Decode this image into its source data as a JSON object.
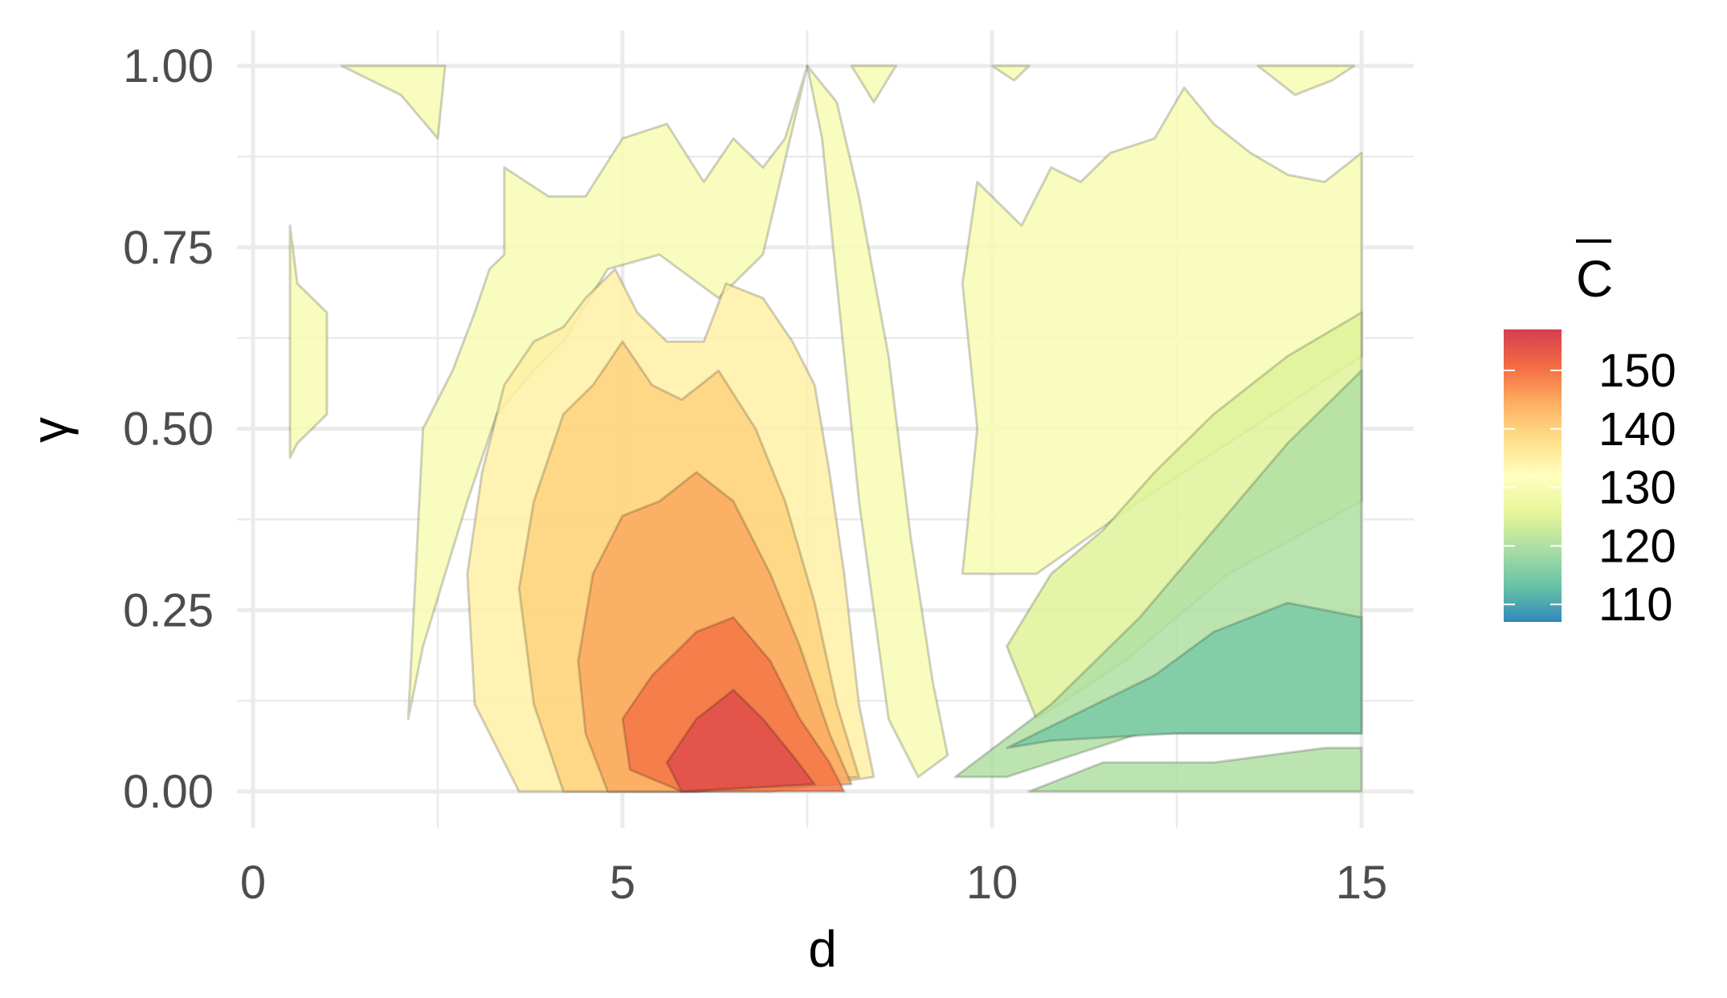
{
  "chart_data": {
    "type": "contour",
    "title": "",
    "xlabel": "d",
    "ylabel": "γ",
    "xlim": [
      0,
      15
    ],
    "ylim": [
      0,
      1
    ],
    "x_ticks": [
      0,
      5,
      10,
      15
    ],
    "y_ticks": [
      0.0,
      0.25,
      0.5,
      0.75,
      1.0
    ],
    "x_tick_labels": [
      "0",
      "5",
      "10",
      "15"
    ],
    "y_tick_labels": [
      "0.00",
      "0.25",
      "0.50",
      "0.75",
      "1.00"
    ],
    "grid": true,
    "legend": {
      "title": "C",
      "title_overline": true,
      "position": "right",
      "breaks": [
        110,
        120,
        130,
        140,
        150
      ],
      "break_labels": [
        "110",
        "120",
        "130",
        "140",
        "150"
      ],
      "range": [
        107,
        157
      ],
      "colors": [
        "#3288bd",
        "#66c2a5",
        "#abdda4",
        "#e6f598",
        "#ffffbf",
        "#fee08b",
        "#fdae61",
        "#f46d43",
        "#d53e4f"
      ]
    },
    "levels": [
      {
        "level": 130,
        "regions": [
          {
            "points": [
              [
                0.5,
                0.46
              ],
              [
                0.5,
                0.78
              ],
              [
                0.6,
                0.7
              ],
              [
                1.0,
                0.66
              ],
              [
                1.0,
                0.6
              ],
              [
                1.0,
                0.52
              ],
              [
                0.6,
                0.48
              ]
            ]
          },
          {
            "points": [
              [
                2.3,
                0.5
              ],
              [
                2.7,
                0.58
              ],
              [
                3.0,
                0.66
              ],
              [
                3.2,
                0.72
              ],
              [
                3.4,
                0.74
              ],
              [
                3.4,
                0.86
              ],
              [
                4.0,
                0.82
              ],
              [
                4.5,
                0.82
              ],
              [
                5.0,
                0.9
              ],
              [
                5.6,
                0.92
              ],
              [
                6.1,
                0.84
              ],
              [
                6.5,
                0.9
              ],
              [
                6.9,
                0.86
              ],
              [
                7.2,
                0.9
              ],
              [
                7.5,
                1.0
              ],
              [
                6.9,
                0.74
              ],
              [
                6.3,
                0.68
              ],
              [
                5.5,
                0.74
              ],
              [
                4.8,
                0.72
              ],
              [
                4.2,
                0.62
              ],
              [
                3.8,
                0.58
              ],
              [
                3.3,
                0.52
              ],
              [
                2.9,
                0.4
              ],
              [
                2.6,
                0.3
              ],
              [
                2.3,
                0.2
              ],
              [
                2.1,
                0.1
              ]
            ]
          },
          {
            "points": [
              [
                1.2,
                1.0
              ],
              [
                2.0,
                0.96
              ],
              [
                2.5,
                0.9
              ],
              [
                2.6,
                1.0
              ]
            ]
          },
          {
            "points": [
              [
                7.5,
                1.0
              ],
              [
                7.9,
                0.95
              ],
              [
                8.2,
                0.82
              ],
              [
                8.6,
                0.6
              ],
              [
                8.9,
                0.35
              ],
              [
                9.2,
                0.15
              ],
              [
                9.4,
                0.05
              ],
              [
                9.0,
                0.02
              ],
              [
                8.6,
                0.1
              ],
              [
                8.2,
                0.4
              ],
              [
                7.9,
                0.7
              ],
              [
                7.7,
                0.9
              ]
            ]
          },
          {
            "points": [
              [
                9.6,
                0.3
              ],
              [
                9.8,
                0.5
              ],
              [
                9.6,
                0.7
              ],
              [
                9.8,
                0.84
              ],
              [
                10.4,
                0.78
              ],
              [
                10.8,
                0.86
              ],
              [
                11.2,
                0.84
              ],
              [
                11.6,
                0.88
              ],
              [
                12.2,
                0.9
              ],
              [
                12.6,
                0.97
              ],
              [
                13.0,
                0.92
              ],
              [
                13.5,
                0.88
              ],
              [
                14.0,
                0.85
              ],
              [
                14.5,
                0.84
              ],
              [
                15.0,
                0.88
              ],
              [
                15.0,
                0.6
              ],
              [
                13.5,
                0.5
              ],
              [
                12.0,
                0.4
              ],
              [
                10.6,
                0.3
              ]
            ]
          },
          {
            "points": [
              [
                8.1,
                1.0
              ],
              [
                8.4,
                0.95
              ],
              [
                8.7,
                1.0
              ]
            ]
          },
          {
            "points": [
              [
                10.0,
                1.0
              ],
              [
                10.3,
                0.98
              ],
              [
                10.5,
                1.0
              ]
            ]
          },
          {
            "points": [
              [
                13.6,
                1.0
              ],
              [
                14.1,
                0.96
              ],
              [
                14.6,
                0.98
              ],
              [
                14.9,
                1.0
              ]
            ]
          }
        ]
      },
      {
        "level": 135,
        "regions": [
          {
            "points": [
              [
                2.9,
                0.3
              ],
              [
                3.1,
                0.44
              ],
              [
                3.4,
                0.56
              ],
              [
                3.8,
                0.62
              ],
              [
                4.2,
                0.64
              ],
              [
                4.5,
                0.68
              ],
              [
                4.9,
                0.72
              ],
              [
                5.2,
                0.66
              ],
              [
                5.6,
                0.62
              ],
              [
                6.1,
                0.62
              ],
              [
                6.4,
                0.7
              ],
              [
                6.9,
                0.68
              ],
              [
                7.3,
                0.62
              ],
              [
                7.6,
                0.56
              ],
              [
                7.8,
                0.44
              ],
              [
                8.0,
                0.3
              ],
              [
                8.2,
                0.12
              ],
              [
                8.4,
                0.02
              ],
              [
                7.0,
                0.0
              ],
              [
                5.0,
                0.0
              ],
              [
                3.6,
                0.0
              ],
              [
                3.0,
                0.12
              ]
            ]
          }
        ]
      },
      {
        "level": 140,
        "regions": [
          {
            "points": [
              [
                3.6,
                0.28
              ],
              [
                3.8,
                0.4
              ],
              [
                4.2,
                0.52
              ],
              [
                4.6,
                0.56
              ],
              [
                5.0,
                0.62
              ],
              [
                5.4,
                0.56
              ],
              [
                5.8,
                0.54
              ],
              [
                6.3,
                0.58
              ],
              [
                6.8,
                0.5
              ],
              [
                7.2,
                0.4
              ],
              [
                7.6,
                0.26
              ],
              [
                7.9,
                0.12
              ],
              [
                8.2,
                0.02
              ],
              [
                6.0,
                0.0
              ],
              [
                4.2,
                0.0
              ],
              [
                3.8,
                0.12
              ]
            ]
          }
        ]
      },
      {
        "level": 145,
        "regions": [
          {
            "points": [
              [
                4.4,
                0.18
              ],
              [
                4.6,
                0.3
              ],
              [
                5.0,
                0.38
              ],
              [
                5.5,
                0.4
              ],
              [
                6.0,
                0.44
              ],
              [
                6.5,
                0.4
              ],
              [
                7.0,
                0.3
              ],
              [
                7.4,
                0.2
              ],
              [
                7.8,
                0.08
              ],
              [
                8.1,
                0.01
              ],
              [
                6.0,
                0.0
              ],
              [
                4.8,
                0.0
              ],
              [
                4.5,
                0.08
              ]
            ]
          }
        ]
      },
      {
        "level": 150,
        "regions": [
          {
            "points": [
              [
                5.0,
                0.1
              ],
              [
                5.4,
                0.16
              ],
              [
                6.0,
                0.22
              ],
              [
                6.5,
                0.24
              ],
              [
                7.0,
                0.18
              ],
              [
                7.4,
                0.1
              ],
              [
                7.8,
                0.04
              ],
              [
                8.0,
                0.0
              ],
              [
                5.8,
                0.0
              ],
              [
                5.1,
                0.03
              ]
            ]
          }
        ]
      },
      {
        "level": 155,
        "regions": [
          {
            "points": [
              [
                5.6,
                0.04
              ],
              [
                6.0,
                0.1
              ],
              [
                6.5,
                0.14
              ],
              [
                6.9,
                0.1
              ],
              [
                7.3,
                0.05
              ],
              [
                7.6,
                0.01
              ],
              [
                5.8,
                0.0
              ]
            ]
          }
        ]
      },
      {
        "level": 125,
        "regions": [
          {
            "points": [
              [
                10.2,
                0.2
              ],
              [
                10.8,
                0.3
              ],
              [
                11.5,
                0.36
              ],
              [
                12.2,
                0.44
              ],
              [
                13.0,
                0.52
              ],
              [
                14.0,
                0.6
              ],
              [
                15.0,
                0.66
              ],
              [
                15.0,
                0.4
              ],
              [
                13.2,
                0.3
              ],
              [
                11.8,
                0.18
              ],
              [
                10.6,
                0.1
              ]
            ]
          }
        ]
      },
      {
        "level": 120,
        "regions": [
          {
            "points": [
              [
                9.5,
                0.02
              ],
              [
                10.8,
                0.12
              ],
              [
                12.0,
                0.24
              ],
              [
                13.0,
                0.36
              ],
              [
                14.0,
                0.48
              ],
              [
                15.0,
                0.58
              ],
              [
                15.0,
                0.08
              ],
              [
                12.0,
                0.08
              ],
              [
                10.2,
                0.02
              ]
            ]
          },
          {
            "points": [
              [
                10.5,
                0.0
              ],
              [
                11.5,
                0.04
              ],
              [
                13.0,
                0.04
              ],
              [
                14.5,
                0.06
              ],
              [
                15.0,
                0.06
              ],
              [
                15.0,
                0.0
              ]
            ]
          }
        ]
      },
      {
        "level": 115,
        "regions": [
          {
            "points": [
              [
                10.2,
                0.06
              ],
              [
                11.0,
                0.1
              ],
              [
                12.2,
                0.16
              ],
              [
                13.0,
                0.22
              ],
              [
                14.0,
                0.26
              ],
              [
                15.0,
                0.24
              ],
              [
                15.0,
                0.08
              ],
              [
                12.5,
                0.08
              ],
              [
                10.8,
                0.07
              ]
            ]
          }
        ]
      }
    ]
  }
}
